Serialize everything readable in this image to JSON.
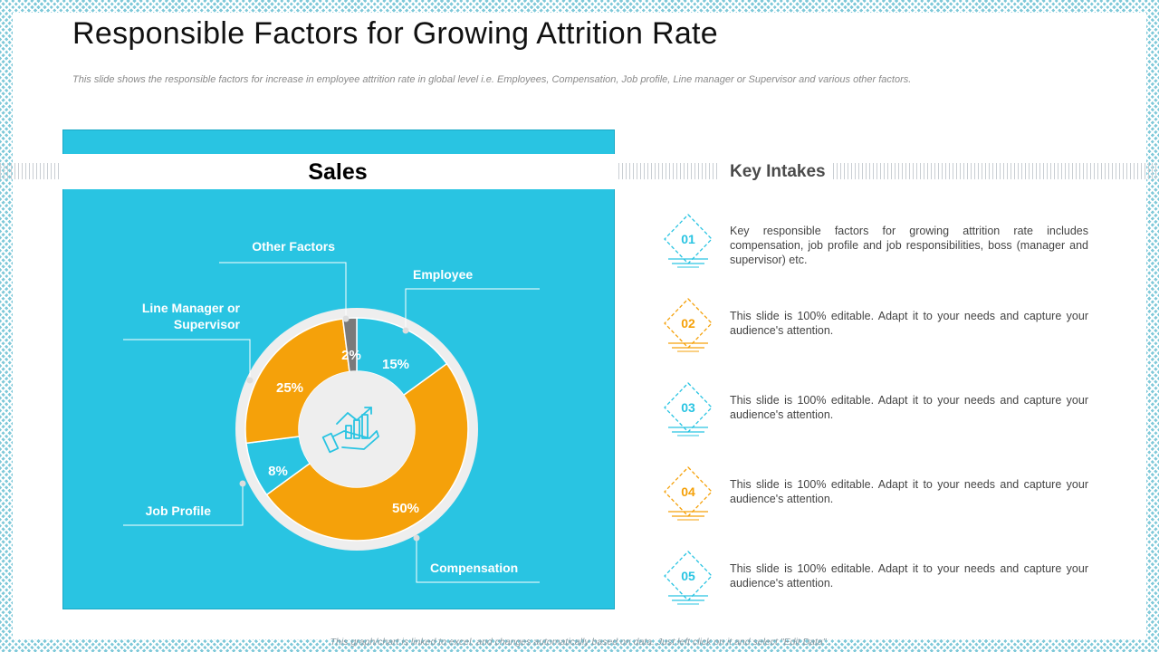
{
  "title": "Responsible Factors for Growing Attrition Rate",
  "subtitle": "This slide shows the responsible factors for increase in employee attrition rate in global level i.e. Employees, Compensation, Job profile, Line manager or Supervisor and various other factors.",
  "chart_data": {
    "type": "pie",
    "title": "Sales",
    "center_icon": "money-growth-hand-icon",
    "slices": [
      {
        "label": "Employee",
        "value": 15,
        "display": "15%"
      },
      {
        "label": "Compensation",
        "value": 50,
        "display": "50%"
      },
      {
        "label": "Job Profile",
        "value": 8,
        "display": "8%"
      },
      {
        "label": "Line Manager or Supervisor",
        "value": 25,
        "display": "25%"
      },
      {
        "label": "Other Factors",
        "value": 2,
        "display": "2%"
      }
    ],
    "colors": {
      "background": "#29c4e2",
      "slice_blue": "#29c4e2",
      "slice_orange": "#f5a10a",
      "slice_gray": "#7a7a7a",
      "ring": "#eeeeee"
    }
  },
  "key_intakes": {
    "title": "Key Intakes",
    "items": [
      {
        "number": "01",
        "color": "#29c4e2",
        "text": "Key responsible factors for growing attrition rate includes compensation, job profile and job responsibilities, boss (manager and supervisor) etc."
      },
      {
        "number": "02",
        "color": "#f5a10a",
        "text": "This slide is 100% editable. Adapt it to your needs and capture your audience's attention."
      },
      {
        "number": "03",
        "color": "#29c4e2",
        "text": "This slide is 100% editable. Adapt it to your needs and capture your audience's attention."
      },
      {
        "number": "04",
        "color": "#f5a10a",
        "text": "This slide is 100% editable. Adapt it to your needs and capture your audience's attention."
      },
      {
        "number": "05",
        "color": "#29c4e2",
        "text": "This slide is 100% editable. Adapt it to your needs and capture your audience's attention."
      }
    ]
  },
  "footer_note": "This graph/chart is linked to excel, and changes automatically based on data. Just left click on it and select \"Edit Data\"."
}
